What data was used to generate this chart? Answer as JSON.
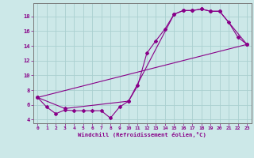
{
  "xlabel": "Windchill (Refroidissement éolien,°C)",
  "bg_color": "#cce8e8",
  "line_color": "#880088",
  "grid_color": "#aad0d0",
  "line1_x": [
    0,
    1,
    2,
    3,
    4,
    5,
    6,
    7,
    8,
    9,
    10,
    11,
    12,
    13,
    14,
    15,
    16,
    17,
    18,
    19,
    20,
    21,
    22,
    23
  ],
  "line1_y": [
    7.0,
    5.7,
    4.8,
    5.3,
    5.2,
    5.2,
    5.2,
    5.2,
    4.2,
    5.7,
    6.5,
    8.6,
    13.0,
    14.7,
    16.3,
    18.3,
    18.8,
    18.8,
    19.0,
    18.7,
    18.7,
    17.2,
    15.2,
    14.2
  ],
  "line2_x": [
    0,
    3,
    10,
    15,
    16,
    17,
    18,
    19,
    20,
    23
  ],
  "line2_y": [
    7.0,
    5.5,
    6.5,
    18.3,
    18.8,
    18.8,
    19.0,
    18.7,
    18.7,
    14.2
  ],
  "line3_x": [
    0,
    23
  ],
  "line3_y": [
    7.0,
    14.2
  ],
  "xlim": [
    -0.5,
    23.5
  ],
  "ylim": [
    3.5,
    19.8
  ],
  "yticks": [
    4,
    6,
    8,
    10,
    12,
    14,
    16,
    18
  ],
  "xticks": [
    0,
    1,
    2,
    3,
    4,
    5,
    6,
    7,
    8,
    9,
    10,
    11,
    12,
    13,
    14,
    15,
    16,
    17,
    18,
    19,
    20,
    21,
    22,
    23
  ]
}
